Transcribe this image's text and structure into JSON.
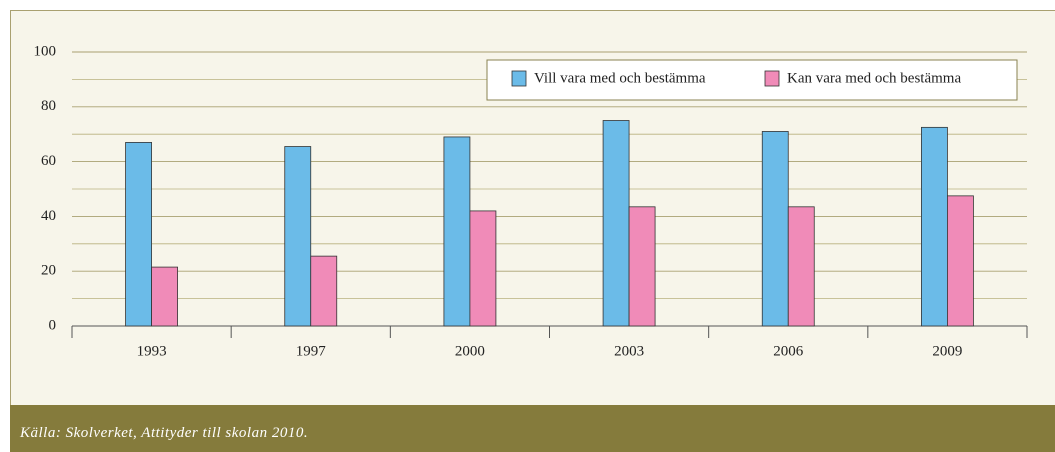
{
  "chart_data": {
    "type": "bar",
    "categories": [
      "1993",
      "1997",
      "2000",
      "2003",
      "2006",
      "2009"
    ],
    "series": [
      {
        "name": "Vill vara med och bestämma",
        "color": "#6bbbe8",
        "values": [
          67,
          65.5,
          69,
          75,
          71,
          72.5
        ]
      },
      {
        "name": "Kan vara med och bestämma",
        "color": "#f08bb8",
        "values": [
          21.5,
          25.5,
          42,
          43.5,
          43.5,
          47.5
        ]
      }
    ],
    "ylim": [
      0,
      100
    ],
    "yticks": [
      0,
      20,
      40,
      60,
      80,
      100
    ],
    "minor_yticks": [
      10,
      30,
      50,
      70,
      90
    ],
    "grid": true
  },
  "source": "Källa: Skolverket, Attityder till skolan 2010."
}
